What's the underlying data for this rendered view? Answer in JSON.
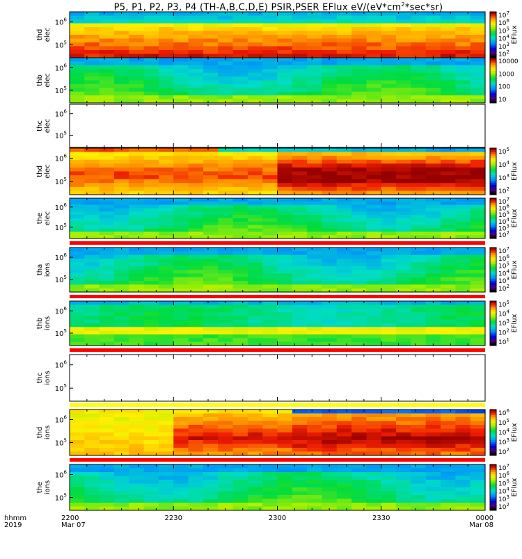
{
  "chart_data": {
    "type": "heatmap",
    "title": "P5, P1, P2, P3, P4 (TH-A,B,C,D,E) PSIR,PSER EFlux eV/(eV*cm",
    "title_sup": "2",
    "title_tail": "*sec*sr)",
    "x_axis": {
      "row_labels": [
        "hhmm",
        "2019"
      ],
      "ticks": [
        {
          "time": "2200",
          "date": "Mar 07"
        },
        {
          "time": "2230",
          "date": ""
        },
        {
          "time": "2300",
          "date": ""
        },
        {
          "time": "2330",
          "date": ""
        },
        {
          "time": "0000",
          "date": "Mar 08"
        }
      ]
    },
    "panels": [
      {
        "probe": "thd",
        "species": "elec",
        "colorbar_label": "EFlux",
        "ytick_labels": [
          "10^6",
          "10^5"
        ],
        "ctick_labels": [
          "10^7",
          "10^6",
          "10^5",
          "10^4",
          "10^3",
          "10^2"
        ],
        "has_data": true,
        "colormap_hint": "hot-orange",
        "header_strip": "none"
      },
      {
        "probe": "thb",
        "species": "elec",
        "colorbar_label": "",
        "ytick_labels": [
          "10^6",
          "10^5"
        ],
        "ctick_labels": [
          "10000",
          "1000",
          "100",
          "10"
        ],
        "has_data": true,
        "colormap_hint": "green",
        "header_strip": "none"
      },
      {
        "probe": "thc",
        "species": "elec",
        "colorbar_label": "",
        "ytick_labels": [
          "10^6",
          "10^5"
        ],
        "ctick_labels": [],
        "has_data": false,
        "colormap_hint": "",
        "header_strip": "none"
      },
      {
        "probe": "thd",
        "species": "elec",
        "colorbar_label": "EFlux",
        "ytick_labels": [
          "10^6",
          "10^5"
        ],
        "ctick_labels": [
          "10^5",
          "10^4",
          "10^3",
          "10^2"
        ],
        "has_data": true,
        "colormap_hint": "thd-elec",
        "header_strip": "none"
      },
      {
        "probe": "the",
        "species": "elec",
        "colorbar_label": "EFlux",
        "ytick_labels": [
          "10^6",
          "10^5"
        ],
        "ctick_labels": [
          "10^7",
          "10^6",
          "10^5",
          "10^4",
          "10^3",
          "10^2"
        ],
        "has_data": true,
        "colormap_hint": "green",
        "header_strip": "none"
      },
      {
        "probe": "tha",
        "species": "ions",
        "colorbar_label": "EFlux",
        "ytick_labels": [
          "10^6",
          "10^5"
        ],
        "ctick_labels": [
          "10^7",
          "10^6",
          "10^5",
          "10^4",
          "10^3",
          "10^2"
        ],
        "has_data": true,
        "colormap_hint": "green",
        "header_strip": "red"
      },
      {
        "probe": "thb",
        "species": "ions",
        "colorbar_label": "EFlux",
        "ytick_labels": [
          "10^6",
          "10^5"
        ],
        "ctick_labels": [
          "10^5",
          "10^4",
          "10^3",
          "10^2",
          "10^1"
        ],
        "has_data": true,
        "colormap_hint": "green-cyan",
        "header_strip": "red"
      },
      {
        "probe": "thc",
        "species": "ions",
        "colorbar_label": "",
        "ytick_labels": [
          "10^6",
          "10^5"
        ],
        "ctick_labels": [],
        "has_data": false,
        "colormap_hint": "",
        "header_strip": "red"
      },
      {
        "probe": "thd",
        "species": "ions",
        "colorbar_label": "EFlux",
        "ytick_labels": [
          "10^6",
          "10^5"
        ],
        "ctick_labels": [
          "10^6",
          "10^5",
          "10^4",
          "10^3",
          "10^2"
        ],
        "has_data": true,
        "colormap_hint": "thd-ions",
        "header_strip": "yellow"
      },
      {
        "probe": "the",
        "species": "ions",
        "colorbar_label": "EFlux",
        "ytick_labels": [
          "10^6",
          "10^5"
        ],
        "ctick_labels": [
          "10^7",
          "10^6",
          "10^5",
          "10^4",
          "10^3",
          "10^2"
        ],
        "has_data": true,
        "colormap_hint": "green",
        "header_strip": "red"
      }
    ],
    "grid": false,
    "legend": "colorbars-right"
  }
}
